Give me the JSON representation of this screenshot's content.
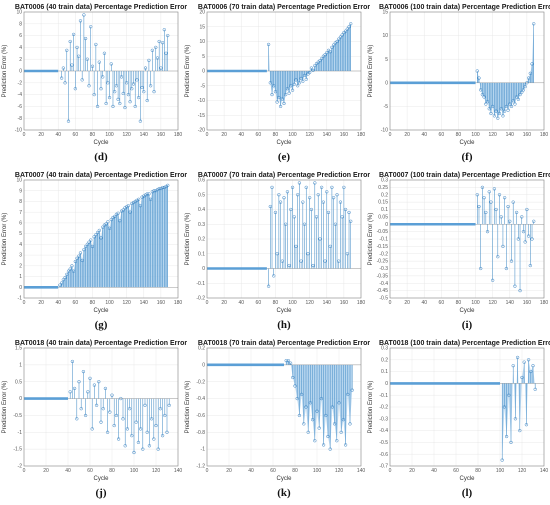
{
  "figure": {
    "xlabel": "Cycle",
    "ylabel": "Prediction Error (%)"
  },
  "colors": {
    "stem": "#4a90c8",
    "fill": "#9fc8ea",
    "marker": "#3f86c4",
    "flat": "#5b9fd6",
    "grid": "#e3e3e3",
    "axis": "#888888"
  },
  "chart_data": [
    {
      "id": "d",
      "type": "scatter",
      "title": "BAT0006 (40 train data) Percentage Prediction Error",
      "panel_label": "(d)",
      "xlabel": "Cycle",
      "ylabel": "Prediction Error (%)",
      "xlim": [
        0,
        180
      ],
      "ylim": [
        -10,
        10
      ],
      "xticks": [
        0,
        20,
        40,
        60,
        80,
        100,
        120,
        140,
        160,
        180
      ],
      "yticks": [
        -10,
        -8,
        -6,
        -4,
        -2,
        0,
        2,
        4,
        6,
        8,
        10
      ],
      "train_end": 40,
      "fill": false,
      "x": [
        44,
        46,
        48,
        50,
        52,
        54,
        56,
        58,
        60,
        62,
        64,
        66,
        68,
        70,
        72,
        74,
        76,
        78,
        80,
        82,
        84,
        86,
        88,
        90,
        92,
        94,
        96,
        98,
        100,
        102,
        104,
        106,
        108,
        110,
        112,
        114,
        116,
        118,
        120,
        122,
        124,
        126,
        128,
        130,
        132,
        134,
        136,
        138,
        140,
        142,
        144,
        146,
        148,
        150,
        152,
        154,
        156,
        158,
        160,
        162,
        164,
        166,
        168
      ],
      "y": [
        -1.2,
        0.5,
        -2.0,
        3.5,
        -8.5,
        5.0,
        1.0,
        6.2,
        -3.0,
        4.0,
        2.5,
        8.5,
        -1.5,
        9.5,
        5.5,
        2.0,
        -2.5,
        7.5,
        0.8,
        -4.0,
        4.5,
        -6.0,
        1.5,
        -3.0,
        -1.0,
        3.0,
        -5.5,
        -2.0,
        -4.5,
        1.2,
        -6.0,
        -3.5,
        -2.5,
        -4.8,
        -5.5,
        -1.0,
        -3.8,
        -6.2,
        -2.0,
        -4.0,
        -5.2,
        -3.0,
        -2.2,
        -6.0,
        -1.5,
        -4.5,
        -8.5,
        -2.8,
        -3.5,
        0.5,
        -5.0,
        1.8,
        -2.5,
        3.5,
        -3.5,
        4.0,
        2.2,
        5.0,
        0.5,
        4.8,
        7.0,
        3.0,
        6.0
      ]
    },
    {
      "id": "e",
      "type": "scatter",
      "title": "BAT0006 (70 train data) Percentage Prediction Error",
      "panel_label": "(e)",
      "xlabel": "Cycle",
      "ylabel": "Prediction Error (%)",
      "xlim": [
        0,
        180
      ],
      "ylim": [
        -20,
        20
      ],
      "xticks": [
        0,
        20,
        40,
        60,
        80,
        100,
        120,
        140,
        160,
        180
      ],
      "yticks": [
        -20,
        -15,
        -10,
        -5,
        0,
        5,
        10,
        15,
        20
      ],
      "train_end": 70,
      "fill": true,
      "x": [
        72,
        74,
        76,
        78,
        80,
        82,
        84,
        86,
        88,
        90,
        92,
        94,
        96,
        98,
        100,
        102,
        104,
        106,
        108,
        110,
        112,
        114,
        116,
        118,
        120,
        122,
        124,
        126,
        128,
        130,
        132,
        134,
        136,
        138,
        140,
        142,
        144,
        146,
        148,
        150,
        152,
        154,
        156,
        158,
        160,
        162,
        164,
        166,
        168
      ],
      "y": [
        9.0,
        -4.0,
        -8.0,
        -5.0,
        -7.0,
        -10.5,
        -9.0,
        -12.0,
        -9.5,
        -11.0,
        -8.0,
        -6.0,
        -7.5,
        -5.0,
        -6.5,
        -4.5,
        -3.0,
        -5.0,
        -4.0,
        -2.5,
        -3.5,
        -1.5,
        -2.8,
        -1.0,
        -0.5,
        1.0,
        0.2,
        1.8,
        2.5,
        3.0,
        3.5,
        4.2,
        5.0,
        5.5,
        6.2,
        7.0,
        6.5,
        8.0,
        8.8,
        9.5,
        10.0,
        10.8,
        11.5,
        12.2,
        13.0,
        13.5,
        14.2,
        15.0,
        16.0
      ]
    },
    {
      "id": "f",
      "type": "scatter",
      "title": "BAT0006 (100 train data) Percentage Prediction Error",
      "panel_label": "(f)",
      "xlabel": "Cycle",
      "ylabel": "Prediction Error (%)",
      "xlim": [
        0,
        180
      ],
      "ylim": [
        -10,
        15
      ],
      "xticks": [
        0,
        20,
        40,
        60,
        80,
        100,
        120,
        140,
        160,
        180
      ],
      "yticks": [
        -10,
        -5,
        0,
        5,
        10,
        15
      ],
      "train_end": 100,
      "fill": true,
      "x": [
        102,
        104,
        106,
        108,
        110,
        112,
        114,
        116,
        118,
        120,
        122,
        124,
        126,
        128,
        130,
        132,
        134,
        136,
        138,
        140,
        142,
        144,
        146,
        148,
        150,
        152,
        154,
        156,
        158,
        160,
        162,
        164,
        166,
        168
      ],
      "y": [
        2.5,
        1.0,
        -1.5,
        -2.5,
        -3.0,
        -4.5,
        -4.0,
        -5.5,
        -6.5,
        -5.0,
        -7.0,
        -6.0,
        -7.5,
        -6.5,
        -5.5,
        -7.0,
        -6.0,
        -5.0,
        -5.8,
        -4.5,
        -5.0,
        -3.8,
        -4.5,
        -3.0,
        -3.5,
        -2.5,
        -2.0,
        -1.5,
        -0.8,
        0.0,
        1.0,
        2.0,
        4.0,
        12.5
      ]
    },
    {
      "id": "g",
      "type": "scatter",
      "title": "BAT0007 (40 train data) Percentage Prediction Error",
      "panel_label": "(g)",
      "xlabel": "Cycle",
      "ylabel": "Prediction Error (%)",
      "xlim": [
        0,
        180
      ],
      "ylim": [
        -1,
        10
      ],
      "xticks": [
        0,
        20,
        40,
        60,
        80,
        100,
        120,
        140,
        160,
        180
      ],
      "yticks": [
        -1,
        0,
        1,
        2,
        3,
        4,
        5,
        6,
        7,
        8,
        9,
        10
      ],
      "train_end": 40,
      "fill": true,
      "x": [
        42,
        44,
        46,
        48,
        50,
        52,
        54,
        56,
        58,
        60,
        62,
        64,
        66,
        68,
        70,
        72,
        74,
        76,
        78,
        80,
        82,
        84,
        86,
        88,
        90,
        92,
        94,
        96,
        98,
        100,
        102,
        104,
        106,
        108,
        110,
        112,
        114,
        116,
        118,
        120,
        122,
        124,
        126,
        128,
        130,
        132,
        134,
        136,
        138,
        140,
        142,
        144,
        146,
        148,
        150,
        152,
        154,
        156,
        158,
        160,
        162,
        164,
        166,
        168
      ],
      "y": [
        0.2,
        0.4,
        0.7,
        0.9,
        1.2,
        1.5,
        1.7,
        2.0,
        1.5,
        2.4,
        2.7,
        2.9,
        3.2,
        2.5,
        3.5,
        3.8,
        4.0,
        4.2,
        4.4,
        3.8,
        4.7,
        4.9,
        5.1,
        5.3,
        4.6,
        5.6,
        5.8,
        5.9,
        6.1,
        5.5,
        6.3,
        6.5,
        6.6,
        6.8,
        6.9,
        6.2,
        7.1,
        7.2,
        7.4,
        7.5,
        7.6,
        7.0,
        7.8,
        7.9,
        8.0,
        8.1,
        8.2,
        7.6,
        8.4,
        8.5,
        8.6,
        8.7,
        8.7,
        8.2,
        8.9,
        9.0,
        9.0,
        9.1,
        9.2,
        9.2,
        9.3,
        9.3,
        9.4,
        9.5
      ]
    },
    {
      "id": "h",
      "type": "scatter",
      "title": "BAT0007 (70 train data) Percentage Prediction Error",
      "panel_label": "(h)",
      "xlabel": "Cycle",
      "ylabel": "Prediction Error (%)",
      "xlim": [
        0,
        180
      ],
      "ylim": [
        -0.2,
        0.6
      ],
      "xticks": [
        0,
        20,
        40,
        60,
        80,
        100,
        120,
        140,
        160,
        180
      ],
      "yticks": [
        -0.2,
        -0.1,
        0,
        0.1,
        0.2,
        0.3,
        0.4,
        0.5,
        0.6
      ],
      "train_end": 70,
      "fill": false,
      "x": [
        72,
        74,
        76,
        78,
        80,
        82,
        84,
        86,
        88,
        90,
        92,
        94,
        96,
        98,
        100,
        102,
        104,
        106,
        108,
        110,
        112,
        114,
        116,
        118,
        120,
        122,
        124,
        126,
        128,
        130,
        132,
        134,
        136,
        138,
        140,
        142,
        144,
        146,
        148,
        150,
        152,
        154,
        156,
        158,
        160,
        162,
        164,
        166,
        168
      ],
      "y": [
        -0.12,
        0.42,
        0.55,
        -0.05,
        0.38,
        0.1,
        0.5,
        0.45,
        0.05,
        0.48,
        0.3,
        0.52,
        0.02,
        0.4,
        0.55,
        0.35,
        0.15,
        0.5,
        0.58,
        0.05,
        0.45,
        0.3,
        0.55,
        0.1,
        0.48,
        0.4,
        0.02,
        0.58,
        0.35,
        0.5,
        0.2,
        0.55,
        0.45,
        0.05,
        0.52,
        0.38,
        0.15,
        0.55,
        0.48,
        0.3,
        0.5,
        0.05,
        0.45,
        0.35,
        0.55,
        0.4,
        0.1,
        0.38,
        0.32
      ]
    },
    {
      "id": "i",
      "type": "scatter",
      "title": "BAT0007 (100 train data) Percentage Prediction Error",
      "panel_label": "(i)",
      "xlabel": "Cycle",
      "ylabel": "Prediction Error (%)",
      "xlim": [
        0,
        180
      ],
      "ylim": [
        -0.5,
        0.3
      ],
      "xticks": [
        0,
        20,
        40,
        60,
        80,
        100,
        120,
        140,
        160,
        180
      ],
      "yticks": [
        -0.5,
        -0.45,
        -0.4,
        -0.35,
        -0.3,
        -0.25,
        -0.2,
        -0.15,
        -0.1,
        -0.05,
        0,
        0.05,
        0.1,
        0.15,
        0.2,
        0.25,
        0.3
      ],
      "train_end": 100,
      "fill": false,
      "x": [
        102,
        104,
        106,
        108,
        110,
        112,
        114,
        116,
        118,
        120,
        122,
        124,
        126,
        128,
        130,
        132,
        134,
        136,
        138,
        140,
        142,
        144,
        146,
        148,
        150,
        152,
        154,
        156,
        158,
        160,
        162,
        164,
        166,
        168
      ],
      "y": [
        0.2,
        0.12,
        -0.3,
        0.25,
        0.18,
        0.08,
        -0.05,
        0.22,
        0.15,
        -0.38,
        0.24,
        0.1,
        -0.22,
        0.2,
        0.05,
        -0.15,
        0.18,
        -0.3,
        0.12,
        0.02,
        -0.25,
        0.15,
        -0.42,
        0.08,
        -0.1,
        -0.45,
        0.05,
        -0.05,
        -0.12,
        0.1,
        -0.08,
        -0.28,
        -0.1,
        0.02
      ]
    },
    {
      "id": "j",
      "type": "scatter",
      "title": "BAT0018 (40 train data) Percentage Prediction Error",
      "panel_label": "(j)",
      "xlabel": "Cycle",
      "ylabel": "Prediction Error (%)",
      "xlim": [
        0,
        140
      ],
      "ylim": [
        -2,
        1.5
      ],
      "xticks": [
        0,
        20,
        40,
        60,
        80,
        100,
        120,
        140
      ],
      "yticks": [
        -2,
        -1.5,
        -1,
        -0.5,
        0,
        0.5,
        1,
        1.5
      ],
      "train_end": 40,
      "fill": false,
      "x": [
        42,
        44,
        46,
        48,
        50,
        52,
        54,
        56,
        58,
        60,
        62,
        64,
        66,
        68,
        70,
        72,
        74,
        76,
        78,
        80,
        82,
        84,
        86,
        88,
        90,
        92,
        94,
        96,
        98,
        100,
        102,
        104,
        106,
        108,
        110,
        112,
        114,
        116,
        118,
        120,
        122,
        124,
        126,
        128,
        130,
        132
      ],
      "y": [
        0.2,
        1.1,
        0.3,
        -0.6,
        0.5,
        -0.3,
        0.8,
        -0.5,
        0.2,
        0.6,
        -0.9,
        0.4,
        -0.2,
        0.5,
        -0.7,
        -0.3,
        0.3,
        -1.0,
        -0.4,
        0.1,
        -0.8,
        -0.5,
        -1.2,
        0.0,
        -0.6,
        -1.4,
        -0.9,
        -0.3,
        -1.1,
        -1.6,
        -0.7,
        -1.3,
        -0.9,
        -1.5,
        -0.2,
        -1.0,
        -1.4,
        -0.6,
        -1.2,
        -0.8,
        -1.5,
        -0.3,
        -1.1,
        -0.5,
        -1.0,
        -0.2
      ]
    },
    {
      "id": "k",
      "type": "scatter",
      "title": "BAT0018 (70 train data) Percentage Prediction Error",
      "panel_label": "(k)",
      "xlabel": "Cycle",
      "ylabel": "Prediction Error (%)",
      "xlim": [
        0,
        140
      ],
      "ylim": [
        -1.2,
        0.2
      ],
      "xticks": [
        0,
        20,
        40,
        60,
        80,
        100,
        120,
        140
      ],
      "yticks": [
        -1.2,
        -1,
        -0.8,
        -0.6,
        -0.4,
        -0.2,
        0,
        0.2
      ],
      "train_end": 70,
      "fill": true,
      "x": [
        72,
        74,
        76,
        78,
        80,
        82,
        84,
        86,
        88,
        90,
        92,
        94,
        96,
        98,
        100,
        102,
        104,
        106,
        108,
        110,
        112,
        114,
        116,
        118,
        120,
        122,
        124,
        126,
        128,
        130,
        132
      ],
      "y": [
        0.05,
        0.05,
        0.02,
        -0.15,
        -0.25,
        -0.4,
        -0.6,
        -0.35,
        -0.7,
        -0.5,
        -0.8,
        -0.45,
        -0.65,
        -0.9,
        -0.55,
        -0.75,
        -0.4,
        -0.95,
        -0.6,
        -0.85,
        -1.0,
        -0.5,
        -0.7,
        -0.9,
        -0.45,
        -0.8,
        -0.65,
        -0.95,
        -0.35,
        -0.7,
        -0.3
      ]
    },
    {
      "id": "l",
      "type": "scatter",
      "title": "BAT0018 (100 train data) Percentage Prediction Error",
      "panel_label": "(l)",
      "xlabel": "Cycle",
      "ylabel": "Prediction Error (%)",
      "xlim": [
        0,
        140
      ],
      "ylim": [
        -0.7,
        0.3
      ],
      "xticks": [
        0,
        20,
        40,
        60,
        80,
        100,
        120,
        140
      ],
      "yticks": [
        -0.7,
        -0.6,
        -0.5,
        -0.4,
        -0.3,
        -0.2,
        -0.1,
        0,
        0.1,
        0.2,
        0.3
      ],
      "train_end": 100,
      "fill": true,
      "x": [
        102,
        104,
        106,
        108,
        110,
        112,
        114,
        116,
        118,
        120,
        122,
        124,
        126,
        128,
        130,
        132
      ],
      "y": [
        -0.65,
        -0.2,
        -0.45,
        -0.1,
        -0.5,
        0.15,
        -0.3,
        0.22,
        -0.4,
        0.05,
        0.18,
        -0.35,
        0.2,
        0.1,
        0.15,
        -0.05
      ]
    }
  ]
}
